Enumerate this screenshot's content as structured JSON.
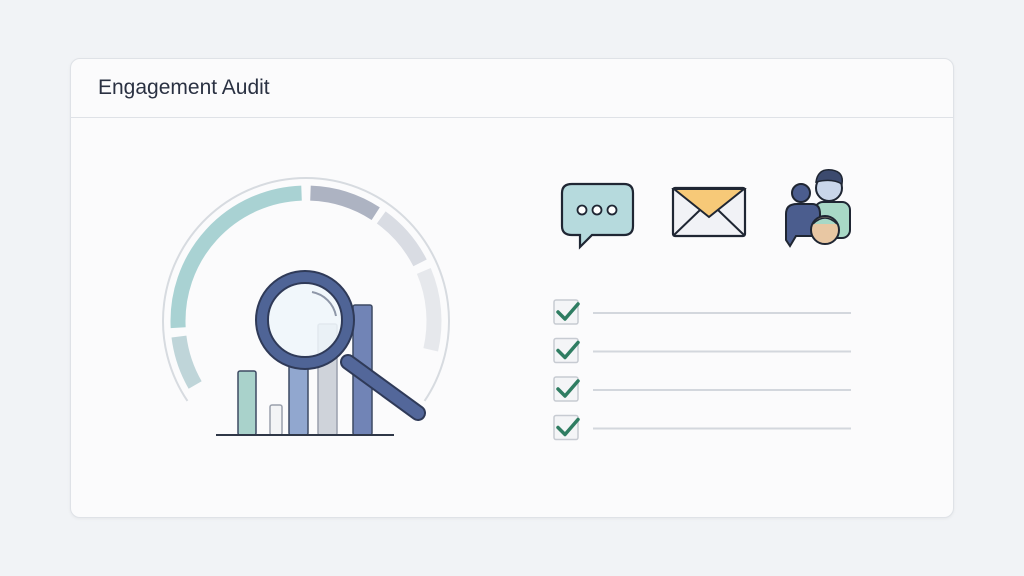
{
  "header": {
    "title": "Engagement Audit"
  },
  "illustration": {
    "gauge_icon": "gauge-with-bar-chart-and-magnifier",
    "channel_icons": [
      "chat-bubble-icon",
      "envelope-icon",
      "people-icon"
    ],
    "checklist_items": [
      {
        "checked": true
      },
      {
        "checked": true
      },
      {
        "checked": true
      },
      {
        "checked": true
      }
    ]
  },
  "colors": {
    "teal": "#a9d2d3",
    "navy": "#4b5d8e",
    "check": "#2f7d62",
    "envelope_flap": "#f7c978"
  }
}
